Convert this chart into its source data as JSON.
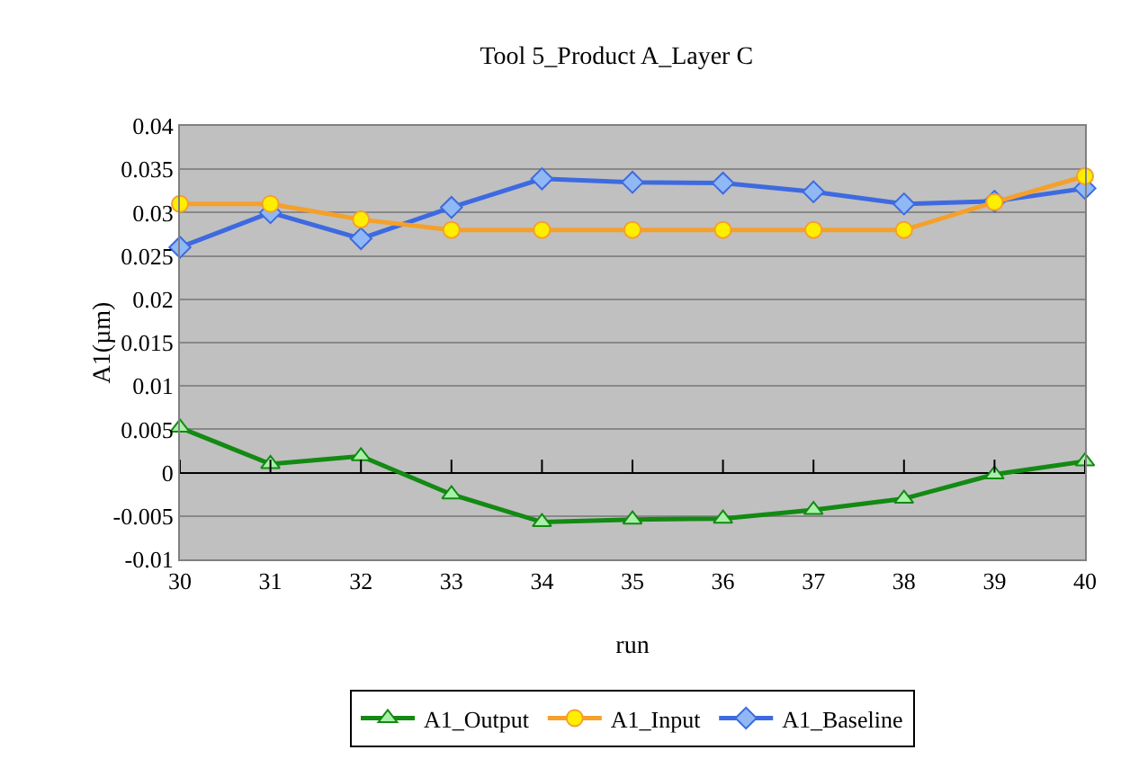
{
  "chart_data": {
    "type": "line",
    "title": "Tool 5_Product A_Layer C",
    "xlabel": "run",
    "ylabel": "A1(µm)",
    "x": [
      30,
      31,
      32,
      33,
      34,
      35,
      36,
      37,
      38,
      39,
      40
    ],
    "series": [
      {
        "name": "A1_Output",
        "color": "#138a13",
        "marker": "triangle",
        "values": [
          0.0052,
          0.001,
          0.0019,
          -0.0025,
          -0.0057,
          -0.0054,
          -0.0053,
          -0.0043,
          -0.003,
          -0.0002,
          0.0013
        ]
      },
      {
        "name": "A1_Input",
        "color": "#f5a02a",
        "marker": "circle",
        "values": [
          0.031,
          0.031,
          0.0292,
          0.028,
          0.028,
          0.028,
          0.028,
          0.028,
          0.028,
          0.0312,
          0.0342
        ]
      },
      {
        "name": "A1_Baseline",
        "color": "#3d6ae0",
        "marker": "diamond",
        "values": [
          0.026,
          0.03,
          0.027,
          0.0306,
          0.0339,
          0.0335,
          0.0334,
          0.0324,
          0.031,
          0.0313,
          0.0328
        ]
      }
    ],
    "xlim": [
      30,
      40
    ],
    "xticks": [
      30,
      31,
      32,
      33,
      34,
      35,
      36,
      37,
      38,
      39,
      40
    ],
    "ylim": [
      -0.01,
      0.04
    ],
    "yticks": [
      -0.01,
      -0.005,
      0,
      0.005,
      0.01,
      0.015,
      0.02,
      0.025,
      0.03,
      0.035,
      0.04
    ],
    "grid": "y",
    "legend": "bottom"
  }
}
